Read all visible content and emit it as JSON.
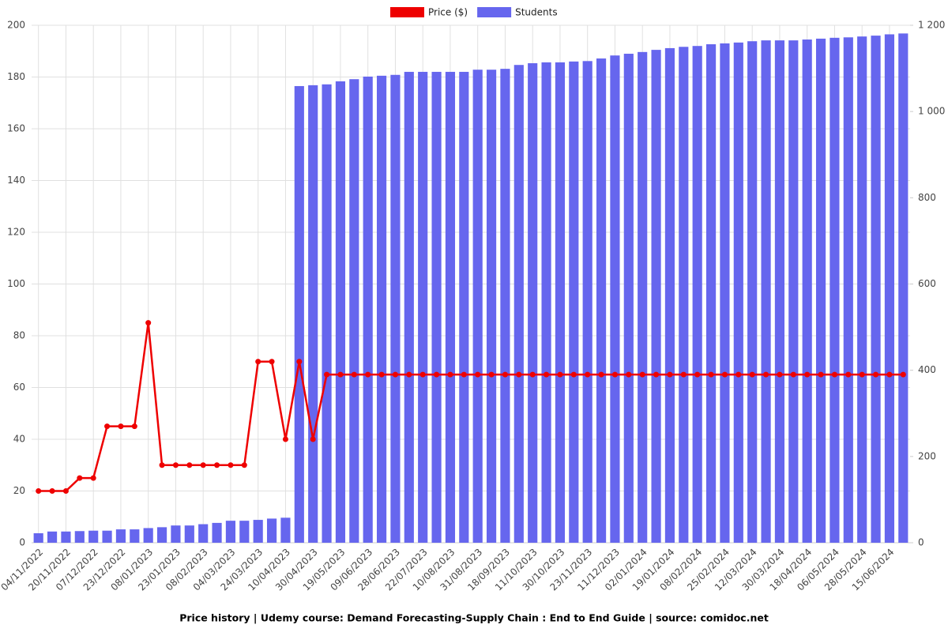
{
  "chart_data": {
    "type": "bar+line",
    "title": "Price history | Udemy course: Demand Forecasting-Supply Chain : End to End Guide | source: comidoc.net",
    "categories": [
      "04/11/2022",
      null,
      "20/11/2022",
      null,
      "07/12/2022",
      null,
      "23/12/2022",
      null,
      "08/01/2023",
      null,
      "23/01/2023",
      null,
      "08/02/2023",
      null,
      "04/03/2023",
      null,
      "24/03/2023",
      null,
      "10/04/2023",
      null,
      "30/04/2023",
      null,
      "19/05/2023",
      null,
      "09/06/2023",
      null,
      "28/06/2023",
      null,
      "22/07/2023",
      null,
      "10/08/2023",
      null,
      "31/08/2023",
      null,
      "18/09/2023",
      null,
      "11/10/2023",
      null,
      "30/10/2023",
      null,
      "23/11/2023",
      null,
      "11/12/2023",
      null,
      "02/01/2024",
      null,
      "19/01/2024",
      null,
      "08/02/2024",
      null,
      "25/02/2024",
      null,
      "12/03/2024",
      null,
      "30/03/2024",
      null,
      "18/04/2024",
      null,
      "06/05/2024",
      null,
      "28/05/2024",
      null,
      "15/06/2024",
      null
    ],
    "series": [
      {
        "name": "Price ($)",
        "color": "#ee0000",
        "type": "line",
        "values": [
          20,
          20,
          20,
          25,
          25,
          45,
          45,
          45,
          85,
          30,
          30,
          30,
          30,
          30,
          30,
          30,
          70,
          70,
          40,
          70,
          40,
          65,
          65,
          65,
          65,
          65,
          65,
          65,
          65,
          65,
          65,
          65,
          65,
          65,
          65,
          65,
          65,
          65,
          65,
          65,
          65,
          65,
          65,
          65,
          65,
          65,
          65,
          65,
          65,
          65,
          65,
          65,
          65,
          65,
          65,
          65,
          65,
          65,
          65,
          65,
          65,
          65,
          65,
          65
        ]
      },
      {
        "name": "Students",
        "color": "#6666ee",
        "type": "bar",
        "axis": "y2",
        "values": [
          22,
          26,
          26,
          27,
          28,
          28,
          31,
          31,
          34,
          36,
          40,
          40,
          43,
          46,
          51,
          51,
          53,
          56,
          58,
          1059,
          1061,
          1063,
          1070,
          1075,
          1081,
          1083,
          1085,
          1092,
          1092,
          1092,
          1092,
          1092,
          1097,
          1097,
          1099,
          1108,
          1112,
          1114,
          1114,
          1116,
          1117,
          1123,
          1130,
          1134,
          1138,
          1143,
          1147,
          1150,
          1152,
          1156,
          1158,
          1160,
          1163,
          1165,
          1165,
          1165,
          1167,
          1169,
          1171,
          1172,
          1174,
          1176,
          1179,
          1181
        ]
      }
    ],
    "ylim": [
      0,
      200
    ],
    "yticks": [
      0,
      20,
      40,
      60,
      80,
      100,
      120,
      140,
      160,
      180,
      200
    ],
    "y2lim": [
      0,
      1200
    ],
    "y2ticks": [
      0,
      200,
      400,
      600,
      800,
      {
        "value": 1000,
        "label": "1 000"
      },
      {
        "value": 1200,
        "label": "1 200"
      }
    ],
    "grid": true,
    "legend": "top"
  }
}
